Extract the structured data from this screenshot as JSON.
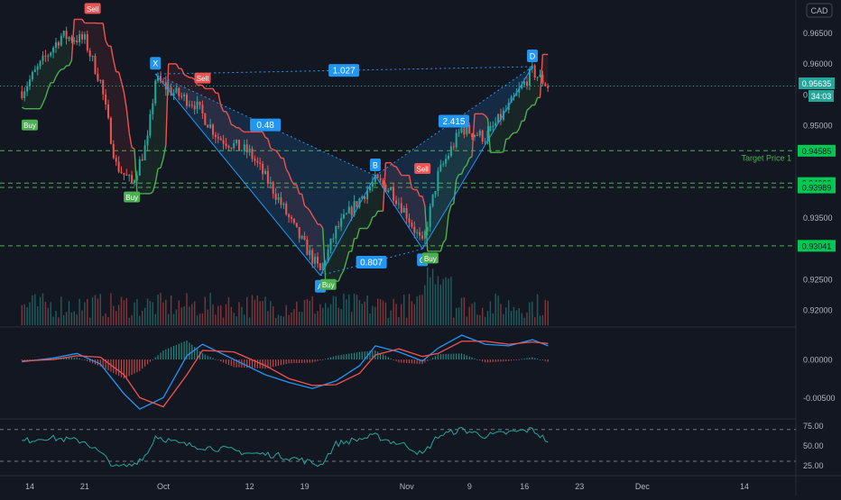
{
  "colors": {
    "background": "#131722",
    "grid": "#1e222d",
    "axis_text": "#b2b5be",
    "up": "#26a69a",
    "down": "#ef5350",
    "trail_up": "#4caf50",
    "trail_down": "#ef5350",
    "pattern": "#2196f3",
    "target": "#4caf50",
    "macd": "#2196f3",
    "signal": "#ef5350",
    "rsi": "#26a69a"
  },
  "price_axis": {
    "currency_badge": "CAD",
    "ticks": [
      "0.96500",
      "0.96000",
      "0.95500",
      "0.95000",
      "0.93500",
      "0.92500",
      "0.92000"
    ]
  },
  "time_axis": {
    "ticks": [
      "14",
      "21",
      "Oct",
      "12",
      "19",
      "Nov",
      "9",
      "16",
      "23",
      "Dec",
      "14"
    ]
  },
  "last_price": {
    "value": "0.95635",
    "countdown": "34:03"
  },
  "levels": [
    {
      "price": 0.94585,
      "label": "0.94585",
      "name": "Target Price 1"
    },
    {
      "price": 0.9406,
      "label": "0.94060",
      "name": ""
    },
    {
      "price": 0.93989,
      "label": "0.93989",
      "name": ""
    },
    {
      "price": 0.93041,
      "label": "0.93041",
      "name": ""
    }
  ],
  "pattern": {
    "points": [
      {
        "label": "X",
        "date": "Sep 30",
        "price": 0.9583
      },
      {
        "label": "A",
        "date": "Oct 21",
        "price": 0.9256
      },
      {
        "label": "B",
        "date": "Oct 28",
        "price": 0.9418
      },
      {
        "label": "C",
        "date": "Nov 3",
        "price": 0.9299
      },
      {
        "label": "D",
        "date": "Nov 17",
        "price": 0.9595
      }
    ],
    "ratios": [
      "1.027",
      "0.48",
      "0.807",
      "2.415"
    ]
  },
  "signals": [
    {
      "type": "Sell",
      "date": "Sep 22",
      "price": 0.9675
    },
    {
      "type": "Buy",
      "date": "Sep 14",
      "price": 0.9515
    },
    {
      "type": "Buy",
      "date": "Sep 27",
      "price": 0.9398
    },
    {
      "type": "Sell",
      "date": "Oct 6",
      "price": 0.9562
    },
    {
      "type": "Buy",
      "date": "Oct 22",
      "price": 0.9256
    },
    {
      "type": "Sell",
      "date": "Nov 3",
      "price": 0.9415
    },
    {
      "type": "Buy",
      "date": "Nov 4",
      "price": 0.9299
    }
  ],
  "macd_axis": {
    "ticks": [
      "0.00000",
      "-0.00500"
    ]
  },
  "rsi_axis": {
    "ticks": [
      "75.00",
      "50.00",
      "25.00"
    ]
  },
  "chart_data": {
    "type": "candlestick",
    "title": "",
    "xlabel": "",
    "ylabel": "",
    "symbol_currency": "CAD",
    "ylim": [
      0.9185,
      0.9695
    ],
    "x_range": [
      "Sep 13",
      "Dec 17"
    ],
    "grid": false,
    "price_path": [
      {
        "date": "Sep 13",
        "price": 0.9555
      },
      {
        "date": "Sep 16",
        "price": 0.961
      },
      {
        "date": "Sep 18",
        "price": 0.9645
      },
      {
        "date": "Sep 21",
        "price": 0.9638
      },
      {
        "date": "Sep 23",
        "price": 0.957
      },
      {
        "date": "Sep 25",
        "price": 0.9435
      },
      {
        "date": "Sep 27",
        "price": 0.9405
      },
      {
        "date": "Sep 29",
        "price": 0.9475
      },
      {
        "date": "Sep 30",
        "price": 0.9575
      },
      {
        "date": "Oct 2",
        "price": 0.9555
      },
      {
        "date": "Oct 5",
        "price": 0.9535
      },
      {
        "date": "Oct 8",
        "price": 0.948
      },
      {
        "date": "Oct 12",
        "price": 0.9455
      },
      {
        "date": "Oct 15",
        "price": 0.9395
      },
      {
        "date": "Oct 18",
        "price": 0.9325
      },
      {
        "date": "Oct 21",
        "price": 0.9262
      },
      {
        "date": "Oct 23",
        "price": 0.933
      },
      {
        "date": "Oct 26",
        "price": 0.938
      },
      {
        "date": "Oct 28",
        "price": 0.941
      },
      {
        "date": "Oct 30",
        "price": 0.9395
      },
      {
        "date": "Nov 1",
        "price": 0.9355
      },
      {
        "date": "Nov 3",
        "price": 0.9305
      },
      {
        "date": "Nov 5",
        "price": 0.942
      },
      {
        "date": "Nov 8",
        "price": 0.9495
      },
      {
        "date": "Nov 11",
        "price": 0.948
      },
      {
        "date": "Nov 14",
        "price": 0.953
      },
      {
        "date": "Nov 17",
        "price": 0.9588
      },
      {
        "date": "Nov 19",
        "price": 0.9563
      }
    ],
    "macd": {
      "ylim": [
        -0.0072,
        0.0032
      ],
      "macd_line": [
        [
          -0.0003,
          "Sep 13"
        ],
        [
          0.0002,
          "Sep 17"
        ],
        [
          0.0008,
          "Sep 20"
        ],
        [
          -0.0006,
          "Sep 23"
        ],
        [
          -0.0045,
          "Sep 26"
        ],
        [
          -0.0065,
          "Sep 28"
        ],
        [
          -0.005,
          "Oct 1"
        ],
        [
          0.0005,
          "Oct 4"
        ],
        [
          0.002,
          "Oct 6"
        ],
        [
          0.0,
          "Oct 10"
        ],
        [
          -0.002,
          "Oct 14"
        ],
        [
          -0.003,
          "Oct 17"
        ],
        [
          -0.0038,
          "Oct 20"
        ],
        [
          -0.0028,
          "Oct 23"
        ],
        [
          -0.0008,
          "Oct 26"
        ],
        [
          0.0018,
          "Oct 28"
        ],
        [
          0.001,
          "Oct 31"
        ],
        [
          -0.0002,
          "Nov 3"
        ],
        [
          0.0015,
          "Nov 5"
        ],
        [
          0.0032,
          "Nov 8"
        ],
        [
          0.002,
          "Nov 11"
        ],
        [
          0.0018,
          "Nov 14"
        ],
        [
          0.0026,
          "Nov 17"
        ],
        [
          0.0018,
          "Nov 19"
        ]
      ],
      "signal_line": [
        [
          -0.0002,
          "Sep 13"
        ],
        [
          0.0,
          "Sep 17"
        ],
        [
          0.0005,
          "Sep 20"
        ],
        [
          0.0003,
          "Sep 23"
        ],
        [
          -0.002,
          "Sep 26"
        ],
        [
          -0.005,
          "Sep 28"
        ],
        [
          -0.0062,
          "Oct 1"
        ],
        [
          -0.002,
          "Oct 4"
        ],
        [
          0.0012,
          "Oct 6"
        ],
        [
          0.001,
          "Oct 10"
        ],
        [
          -0.0008,
          "Oct 14"
        ],
        [
          -0.0025,
          "Oct 17"
        ],
        [
          -0.0034,
          "Oct 20"
        ],
        [
          -0.0033,
          "Oct 23"
        ],
        [
          -0.0018,
          "Oct 26"
        ],
        [
          0.0006,
          "Oct 28"
        ],
        [
          0.0014,
          "Oct 31"
        ],
        [
          0.0004,
          "Nov 3"
        ],
        [
          0.0008,
          "Nov 5"
        ],
        [
          0.0024,
          "Nov 8"
        ],
        [
          0.0024,
          "Nov 11"
        ],
        [
          0.002,
          "Nov 14"
        ],
        [
          0.0023,
          "Nov 17"
        ],
        [
          0.0021,
          "Nov 19"
        ]
      ]
    },
    "rsi": {
      "ylim": [
        14,
        80
      ],
      "bands": [
        70,
        30
      ],
      "values": [
        [
          55,
          "Sep 13"
        ],
        [
          60,
          "Sep 16"
        ],
        [
          58,
          "Sep 18"
        ],
        [
          55,
          "Sep 21"
        ],
        [
          40,
          "Sep 23"
        ],
        [
          22,
          "Sep 25"
        ],
        [
          25,
          "Sep 27"
        ],
        [
          40,
          "Sep 29"
        ],
        [
          62,
          "Sep 30"
        ],
        [
          52,
          "Oct 3"
        ],
        [
          48,
          "Oct 6"
        ],
        [
          45,
          "Oct 9"
        ],
        [
          40,
          "Oct 12"
        ],
        [
          38,
          "Oct 15"
        ],
        [
          33,
          "Oct 18"
        ],
        [
          25,
          "Oct 21"
        ],
        [
          52,
          "Oct 23"
        ],
        [
          58,
          "Oct 26"
        ],
        [
          62,
          "Oct 28"
        ],
        [
          55,
          "Oct 30"
        ],
        [
          50,
          "Nov 1"
        ],
        [
          38,
          "Nov 3"
        ],
        [
          62,
          "Nov 5"
        ],
        [
          70,
          "Nov 8"
        ],
        [
          62,
          "Nov 11"
        ],
        [
          66,
          "Nov 14"
        ],
        [
          70,
          "Nov 17"
        ],
        [
          55,
          "Nov 19"
        ]
      ]
    }
  }
}
